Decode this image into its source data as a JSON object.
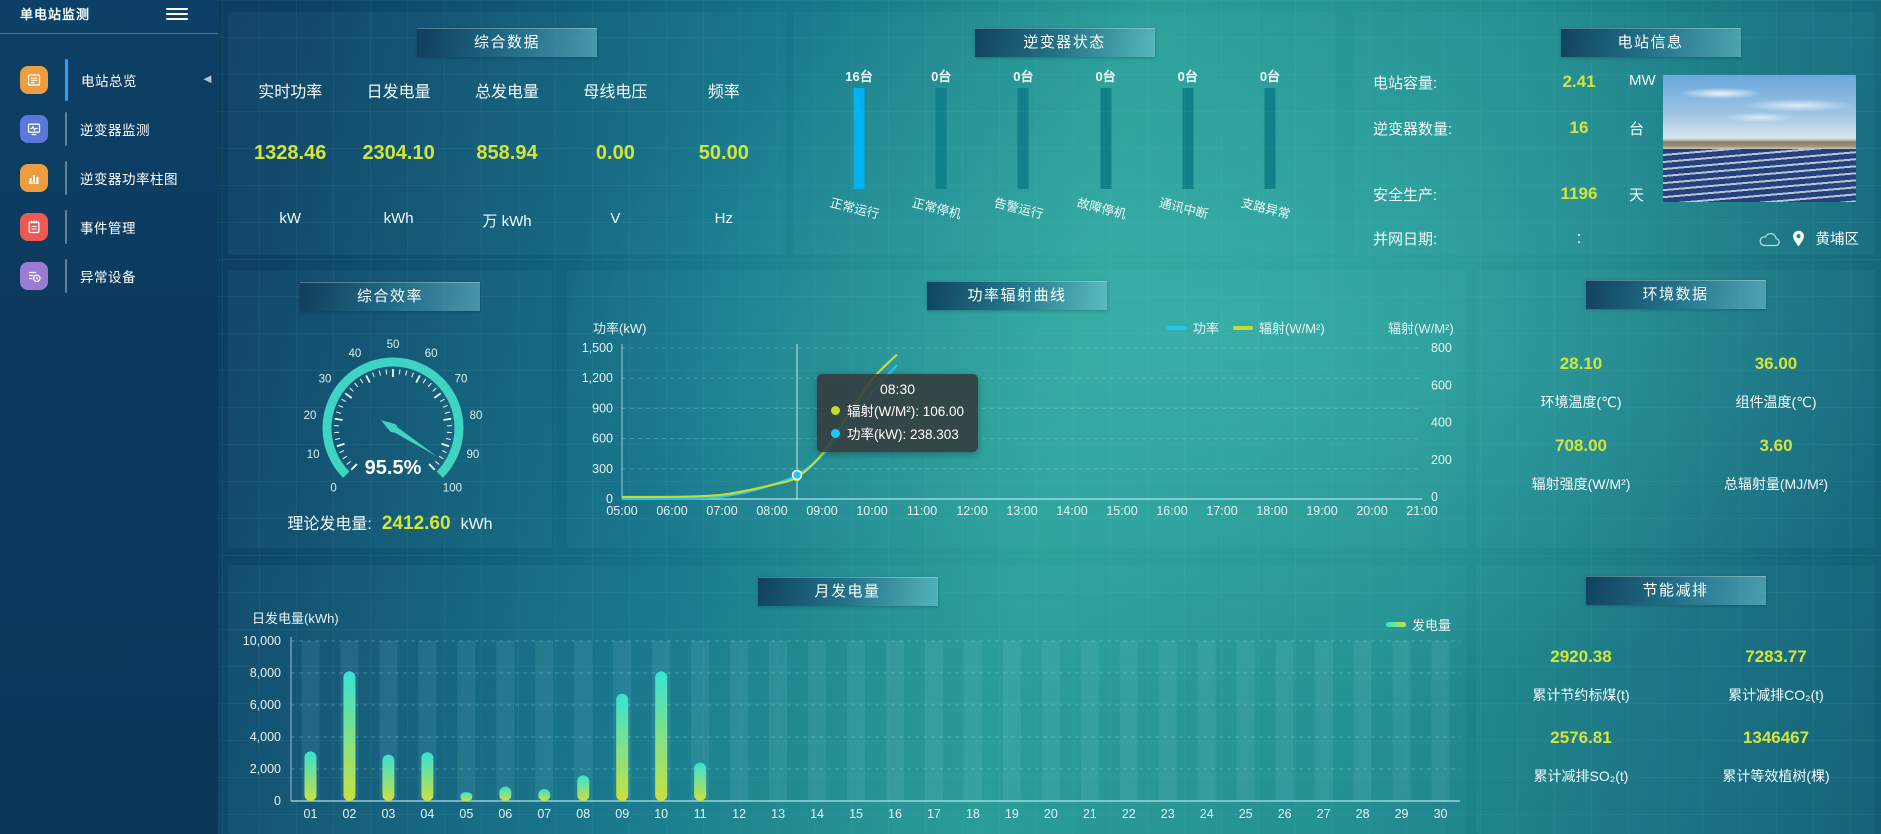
{
  "app": {
    "title": "单电站监测"
  },
  "misc": {
    "collapse_icon": "◄",
    "hamburger_icon": "menu-hamburger-icon"
  },
  "sidebar": {
    "items": [
      {
        "label": "电站总览",
        "icon": "station-overview-icon",
        "color": "#ec9d3f",
        "active": true
      },
      {
        "label": "逆变器监测",
        "icon": "inverter-monitor-icon",
        "color": "#5a78da",
        "active": false
      },
      {
        "label": "逆变器功率柱图",
        "icon": "inverter-power-chart-icon",
        "color": "#ec9d3f",
        "active": false
      },
      {
        "label": "事件管理",
        "icon": "event-management-icon",
        "color": "#ee5a52",
        "active": false
      },
      {
        "label": "异常设备",
        "icon": "abnormal-device-icon",
        "color": "#9b7bd4",
        "active": false
      }
    ]
  },
  "overview_panel": {
    "title": "综合数据",
    "stats": [
      {
        "label": "实时功率",
        "value": "1328.46",
        "unit": "kW"
      },
      {
        "label": "日发电量",
        "value": "2304.10",
        "unit": "kWh"
      },
      {
        "label": "总发电量",
        "value": "858.94",
        "unit": "万 kWh"
      },
      {
        "label": "母线电压",
        "value": "0.00",
        "unit": "V"
      },
      {
        "label": "频率",
        "value": "50.00",
        "unit": "Hz"
      }
    ]
  },
  "inverter_panel": {
    "title": "逆变器状态",
    "statuses": [
      {
        "count": "16台",
        "label": "正常运行",
        "value": 16,
        "highlight": true
      },
      {
        "count": "0台",
        "label": "正常停机",
        "value": 0,
        "highlight": false
      },
      {
        "count": "0台",
        "label": "告警运行",
        "value": 0,
        "highlight": false
      },
      {
        "count": "0台",
        "label": "故障停机",
        "value": 0,
        "highlight": false
      },
      {
        "count": "0台",
        "label": "通讯中断",
        "value": 0,
        "highlight": false
      },
      {
        "count": "0台",
        "label": "支路异常",
        "value": 0,
        "highlight": false
      }
    ],
    "bar_colors": {
      "active": "#00b2ef",
      "inactive": "#10808a"
    }
  },
  "station_panel": {
    "title": "电站信息",
    "rows": [
      {
        "label": "电站容量:",
        "value": "2.41",
        "unit": "MW",
        "plain": false
      },
      {
        "label": "逆变器数量:",
        "value": "16",
        "unit": "台",
        "plain": false
      },
      {
        "label": "安全生产:",
        "value": "1196",
        "unit": "天",
        "plain": false
      },
      {
        "label": "并网日期:",
        "value": ":",
        "unit": "",
        "plain": true
      }
    ],
    "location": "黄埔区",
    "icons": [
      "weather-cloud-icon",
      "location-pin-icon"
    ]
  },
  "gauge_panel": {
    "title": "综合效率",
    "value": 95.5,
    "value_label": "95.5%",
    "min": 0,
    "max": 100,
    "tick_labels": [
      "0",
      "10",
      "20",
      "30",
      "40",
      "50",
      "60",
      "70",
      "80",
      "90",
      "100"
    ],
    "color": "#3ed3c2",
    "footer_label": "理论发电量:",
    "footer_value": "2412.60",
    "footer_unit": "kWh"
  },
  "env_panel": {
    "title": "环境数据",
    "cells": [
      {
        "value": "28.10",
        "label": "环境温度(℃)"
      },
      {
        "value": "36.00",
        "label": "组件温度(℃)"
      },
      {
        "value": "708.00",
        "label": "辐射强度(W/M²)"
      },
      {
        "value": "3.60",
        "label": "总辐射量(MJ/M²)"
      }
    ]
  },
  "energy_panel": {
    "title": "节能减排",
    "cells": [
      {
        "value": "2920.38",
        "label": "累计节约标煤(t)"
      },
      {
        "value": "7283.77",
        "label": "累计减排CO₂(t)"
      },
      {
        "value": "2576.81",
        "label": "累计减排SO₂(t)"
      },
      {
        "value": "1346467",
        "label": "累计等效植树(棵)"
      }
    ]
  },
  "chart_data": [
    {
      "id": "power_radiation",
      "type": "line",
      "title": "功率辐射曲线",
      "grid": "dashed",
      "legend_position": "top-right-inside",
      "ylabel_left": "功率(kW)",
      "ylabel_right": "辐射(W/M²)",
      "ylim_left": [
        0,
        1500
      ],
      "yticks_left": [
        "0",
        "300",
        "600",
        "900",
        "1,200",
        "1,500"
      ],
      "ylim_right": [
        0,
        800
      ],
      "yticks_right": [
        "0",
        "200",
        "400",
        "600",
        "800"
      ],
      "xtick_labels": [
        "05:00",
        "06:00",
        "07:00",
        "08:00",
        "09:00",
        "10:00",
        "11:00",
        "12:00",
        "13:00",
        "14:00",
        "15:00",
        "16:00",
        "17:00",
        "18:00",
        "19:00",
        "20:00",
        "21:00"
      ],
      "x_hours": [
        5,
        5.5,
        6,
        6.5,
        7,
        7.5,
        8,
        8.5,
        9,
        9.5,
        10,
        10.5
      ],
      "series": [
        {
          "name": "功率",
          "axis": "left",
          "color": "#1fc9f5",
          "values": [
            0,
            0,
            2,
            8,
            25,
            70,
            140,
            238.3,
            430,
            720,
            1060,
            1330
          ]
        },
        {
          "name": "辐射(W/M²)",
          "axis": "right",
          "color": "#ccd92c",
          "values": [
            0,
            0,
            1,
            4,
            12,
            35,
            65,
            106,
            230,
            430,
            630,
            765
          ]
        }
      ],
      "tooltip": {
        "time": "08:30",
        "hour": 8.5,
        "items": [
          {
            "label": "辐射(W/M²)",
            "value": "106.00",
            "color": "#ccd92c"
          },
          {
            "label": "功率(kW)",
            "value": "238.303",
            "color": "#1fc9f5"
          }
        ]
      }
    },
    {
      "id": "monthly_generation",
      "type": "bar",
      "title": "月发电量",
      "ylabel": "日发电量(kWh)",
      "legend": "发电量",
      "legend_colors": [
        "#35e3d3",
        "#cbdf3e"
      ],
      "ylim": [
        0,
        10000
      ],
      "yticks": [
        "0",
        "2,000",
        "4,000",
        "6,000",
        "8,000",
        "10,000"
      ],
      "categories": [
        "01",
        "02",
        "03",
        "04",
        "05",
        "06",
        "07",
        "08",
        "09",
        "10",
        "11",
        "12",
        "13",
        "14",
        "15",
        "16",
        "17",
        "18",
        "19",
        "20",
        "21",
        "22",
        "23",
        "24",
        "25",
        "26",
        "27",
        "28",
        "29",
        "30"
      ],
      "values": [
        3100,
        8100,
        2900,
        3050,
        550,
        900,
        750,
        1600,
        6700,
        8100,
        2400,
        0,
        0,
        0,
        0,
        0,
        0,
        0,
        0,
        0,
        0,
        0,
        0,
        0,
        0,
        0,
        0,
        0,
        0,
        0
      ]
    },
    {
      "id": "inverter_status",
      "type": "bar",
      "title": "逆变器状态",
      "categories": [
        "正常运行",
        "正常停机",
        "告警运行",
        "故障停机",
        "通讯中断",
        "支路异常"
      ],
      "values": [
        16,
        0,
        0,
        0,
        0,
        0
      ],
      "unit": "台"
    }
  ]
}
